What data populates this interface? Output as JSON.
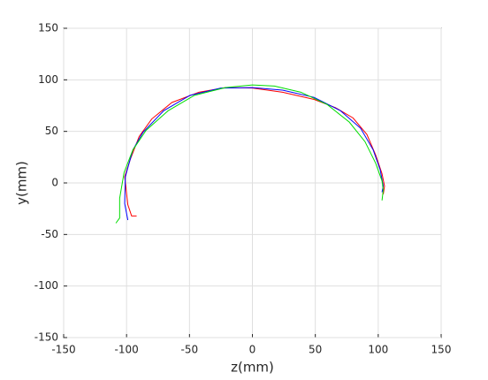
{
  "chart_data": {
    "type": "line",
    "x_label": "z(mm)",
    "y_label": "y(mm)",
    "xlim": [
      -150,
      150
    ],
    "ylim": [
      -150,
      150
    ],
    "xticks": [
      -150,
      -100,
      -50,
      0,
      50,
      100,
      150
    ],
    "yticks": [
      -150,
      -100,
      -50,
      0,
      50,
      100,
      150
    ],
    "grid": true,
    "series": [
      {
        "color": "#ff0000",
        "x": [
          -92,
          -96,
          -99,
          -101.5,
          -97,
          -90,
          -80,
          -64,
          -42.5,
          -21.5,
          0,
          24,
          49,
          66,
          80,
          91,
          98,
          103,
          105,
          104
        ],
        "values": [
          -32,
          -32,
          -21,
          6,
          23,
          45,
          62,
          78,
          88,
          92.5,
          92,
          88,
          81,
          73,
          63,
          47,
          27,
          9,
          -3,
          -11
        ]
      },
      {
        "color": "#0000ff",
        "x": [
          -99,
          -101.5,
          -101,
          -95,
          -87,
          -70.5,
          -49.5,
          -25,
          0,
          24,
          49,
          70,
          86,
          96,
          101.5,
          104,
          103
        ],
        "values": [
          -36,
          -20,
          6,
          32,
          49,
          70,
          85,
          92,
          92.5,
          90,
          83,
          70,
          53,
          32,
          13,
          -3,
          -9
        ]
      },
      {
        "color": "#00dd00",
        "x": [
          -108.5,
          -105.5,
          -105.5,
          -102,
          -95,
          -84.5,
          -67,
          -46,
          -21.5,
          0,
          17.5,
          38.5,
          59.5,
          77,
          89.5,
          98,
          103,
          104,
          103
        ],
        "values": [
          -39,
          -34,
          -15,
          10,
          32,
          51,
          70,
          85,
          92.5,
          95,
          94,
          88,
          76,
          59,
          40,
          19,
          2,
          -7,
          -17
        ]
      }
    ]
  }
}
